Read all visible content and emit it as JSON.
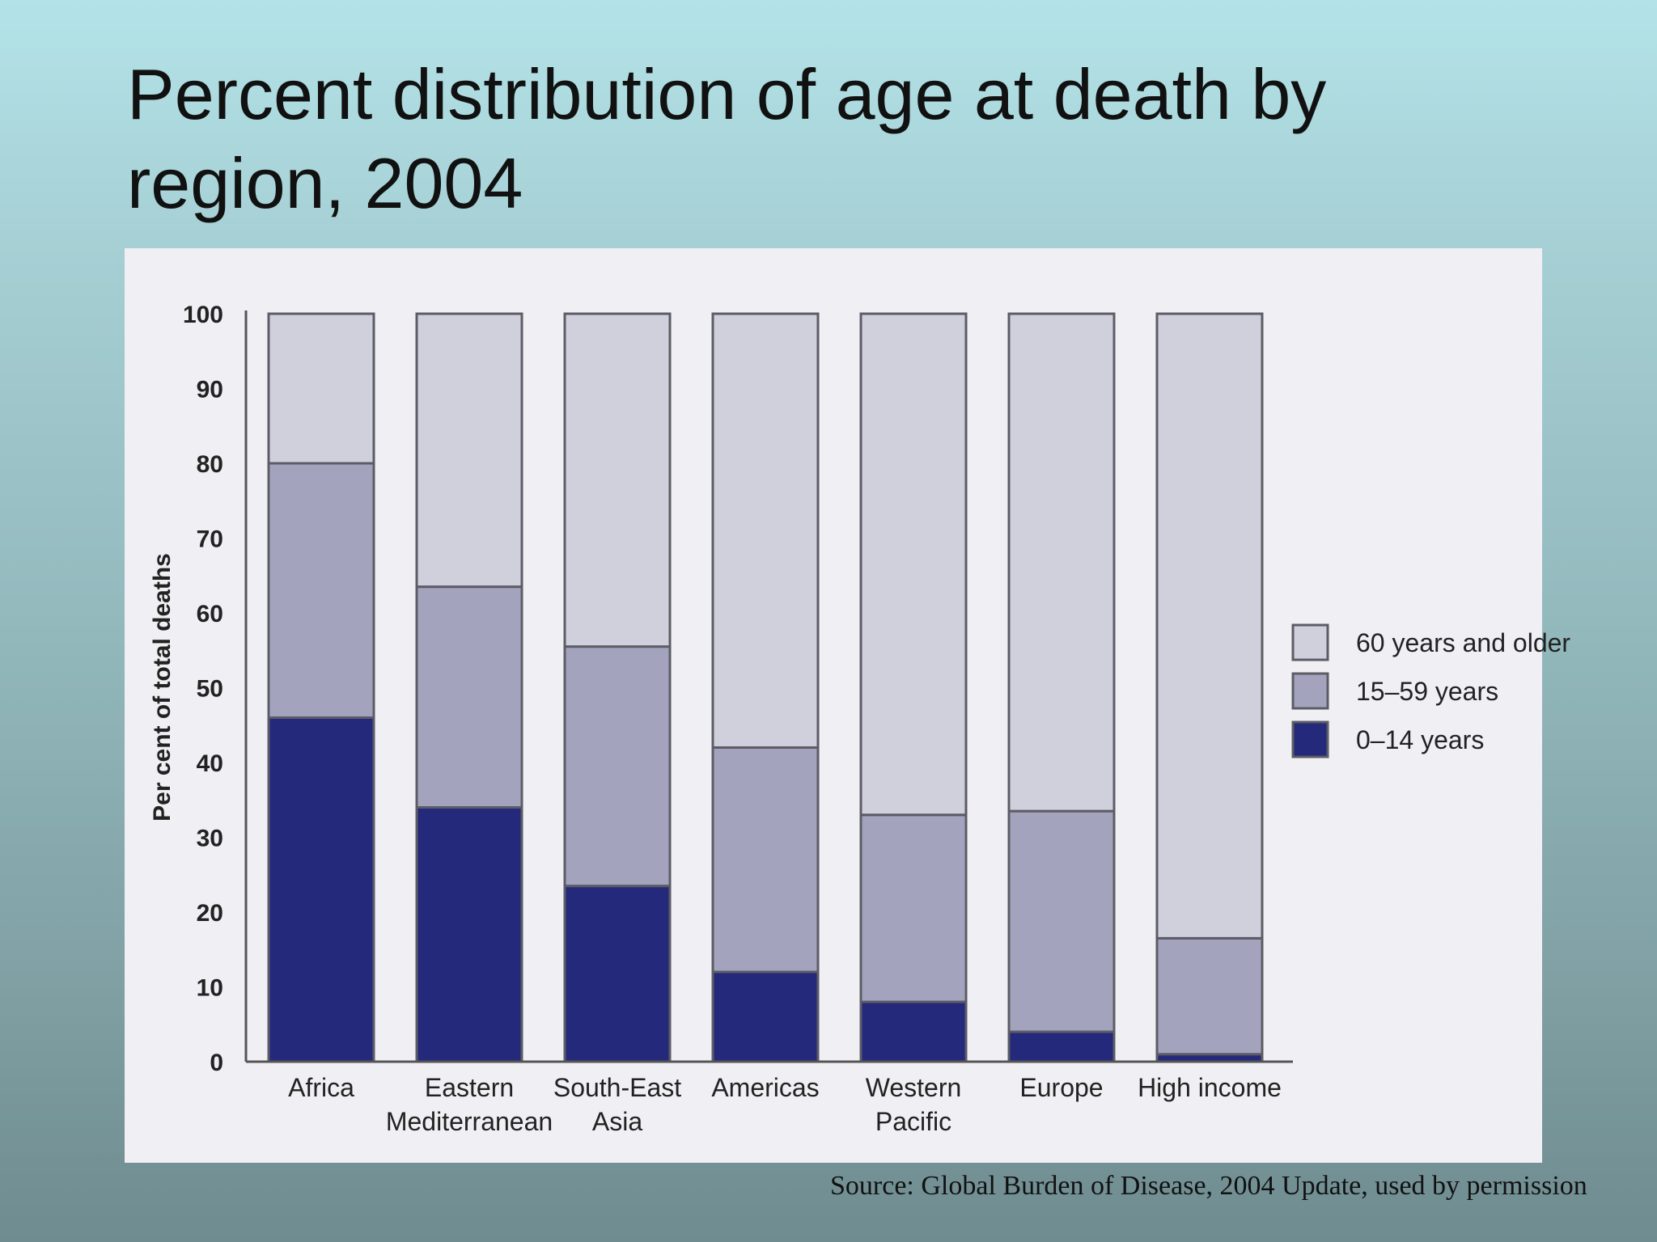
{
  "slide": {
    "title": "Percent distribution of age at death by region, 2004",
    "source": "Source: Global Burden of Disease, 2004 Update, used by permission"
  },
  "chart_data": {
    "type": "bar",
    "stacked": true,
    "title": "",
    "xlabel": "",
    "ylabel": "Per cent of total deaths",
    "ylim": [
      0,
      100
    ],
    "yticks": [
      0,
      10,
      20,
      30,
      40,
      50,
      60,
      70,
      80,
      90,
      100
    ],
    "grid": false,
    "legend_position": "right",
    "categories": [
      [
        "Africa"
      ],
      [
        "Eastern",
        "Mediterranean"
      ],
      [
        "South-East",
        "Asia"
      ],
      [
        "Americas"
      ],
      [
        "Western",
        "Pacific"
      ],
      [
        "Europe"
      ],
      [
        "High income"
      ]
    ],
    "series": [
      {
        "name": "0–14 years",
        "color": "#24297b",
        "values": [
          46,
          34,
          23.5,
          12,
          8,
          4,
          1
        ]
      },
      {
        "name": "15–59 years",
        "color": "#a3a3bd",
        "values": [
          34,
          29.5,
          32,
          30,
          25,
          29.5,
          15.5
        ]
      },
      {
        "name": "60 years and older",
        "color": "#d0cfdc",
        "values": [
          20,
          36.5,
          44.5,
          58,
          67,
          66.5,
          83.5
        ]
      }
    ],
    "legend_order": [
      "60 years and older",
      "15–59 years",
      "0–14 years"
    ]
  }
}
